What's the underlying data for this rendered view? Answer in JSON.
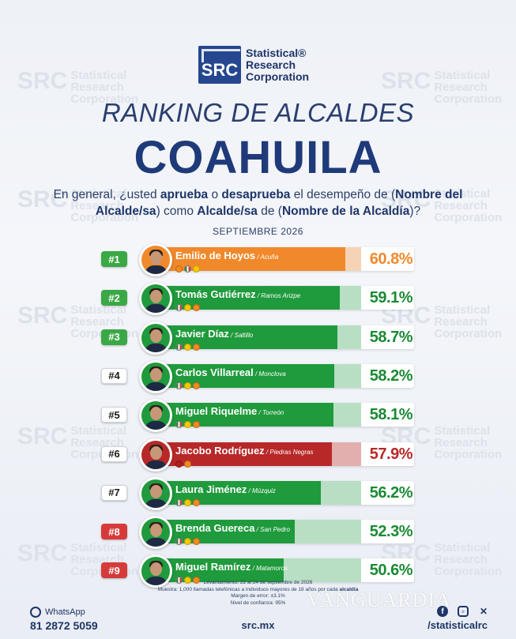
{
  "watermark": {
    "mark": "SRC",
    "line1": "Statistical",
    "line2": "Research",
    "line3": "Corporation"
  },
  "logo": {
    "mark": "SRC",
    "line1": "Statistical®",
    "line2": "Research",
    "line3": "Corporation"
  },
  "header": {
    "title": "RANKING DE ALCALDES",
    "region": "COAHUILA"
  },
  "question": {
    "p1": "En general, ¿usted ",
    "b1": "aprueba",
    "p2": " o ",
    "b2": "desaprueba",
    "p3": " el desempeño de (",
    "b3": "Nombre del Alcalde/sa",
    "p4": ") como ",
    "b4": "Alcalde/sa",
    "p5": " de (",
    "b5": "Nombre de la Alcaldía",
    "p6": ")?"
  },
  "period": "SEPTIEMBRE 2026",
  "colors": {
    "orange": "#f0892b",
    "green": "#1f9a3c",
    "red": "#b82828",
    "navy": "#1e3568"
  },
  "chart_data": {
    "type": "bar",
    "title": "RANKING DE ALCALDES",
    "subtitle": "COAHUILA",
    "ylim": [
      0,
      100
    ],
    "rows": [
      {
        "rank": "#1",
        "name": "Emilio de Hoyos",
        "city": "/ Acuña",
        "value": 60.8,
        "label": "60.8%",
        "color": "orange",
        "badge": "green",
        "parties": [
          "orange",
          "tri",
          "yellow"
        ]
      },
      {
        "rank": "#2",
        "name": "Tomás Gutiérrez",
        "city": "/ Ramos Arizpe",
        "value": 59.1,
        "label": "59.1%",
        "color": "green",
        "badge": "green",
        "parties": [
          "tri",
          "yellow",
          "orange"
        ]
      },
      {
        "rank": "#3",
        "name": "Javier Díaz",
        "city": "/ Saltillo",
        "value": 58.7,
        "label": "58.7%",
        "color": "green",
        "badge": "green",
        "parties": [
          "tri",
          "yellow",
          "orange"
        ]
      },
      {
        "rank": "#4",
        "name": "Carlos Villarreal",
        "city": "/ Monclova",
        "value": 58.2,
        "label": "58.2%",
        "color": "green",
        "badge": "white",
        "parties": [
          "tri",
          "yellow",
          "orange"
        ]
      },
      {
        "rank": "#5",
        "name": "Miguel Riquelme",
        "city": "/ Torreón",
        "value": 58.1,
        "label": "58.1%",
        "color": "green",
        "badge": "white",
        "parties": [
          "tri",
          "yellow",
          "orange"
        ]
      },
      {
        "rank": "#6",
        "name": "Jacobo Rodríguez",
        "city": "/ Piedras Negras",
        "value": 57.9,
        "label": "57.9%",
        "color": "red",
        "badge": "white",
        "parties": [
          "red",
          "orange"
        ]
      },
      {
        "rank": "#7",
        "name": "Laura Jiménez",
        "city": "/ Múzquiz",
        "value": 56.2,
        "label": "56.2%",
        "color": "green",
        "badge": "white",
        "parties": [
          "tri",
          "yellow",
          "orange"
        ]
      },
      {
        "rank": "#8",
        "name": "Brenda Guereca",
        "city": "/ San Pedro",
        "value": 52.3,
        "label": "52.3%",
        "color": "green",
        "badge": "red",
        "parties": [
          "tri",
          "yellow",
          "orange"
        ]
      },
      {
        "rank": "#9",
        "name": "Miguel Ramírez",
        "city": "/ Matamoros",
        "value": 50.6,
        "label": "50.6%",
        "color": "green",
        "badge": "red",
        "parties": [
          "tri",
          "yellow",
          "orange"
        ]
      }
    ]
  },
  "methodology": {
    "line1": "Levantamiento: 22 al 24 de septiembre de 2026",
    "line2a": "Muestra: 1,000 llamadas telefónicas a individuos mayores de 18 años por cada ",
    "line2b": "alcaldía",
    "line3": "Margen de error: ±3.1%",
    "line4": "Nivel de confianza: 95%"
  },
  "footer": {
    "whatsapp_label": "WhatsApp",
    "phone": "81 2872 5059",
    "site": "src.mx",
    "handle": "/statisticalrc",
    "social_icons": [
      "facebook-icon",
      "instagram-icon",
      "x-icon"
    ],
    "credit": "VANGUARDIA"
  }
}
